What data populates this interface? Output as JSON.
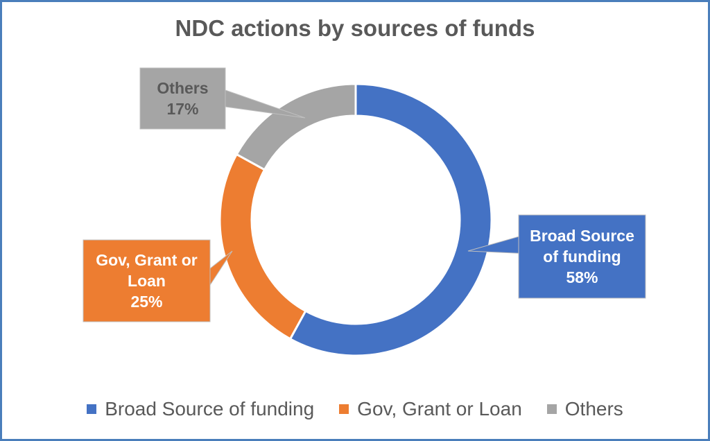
{
  "chart_data": {
    "type": "pie",
    "title": "NDC actions by sources of funds",
    "categories": [
      "Broad Source of funding",
      "Gov, Grant or Loan",
      "Others"
    ],
    "values": [
      58,
      25,
      17
    ],
    "value_labels": [
      "58%",
      "25%",
      "17%"
    ],
    "callout_lines": [
      [
        "Broad Source",
        "of funding",
        "58%"
      ],
      [
        "Gov, Grant or",
        "Loan",
        "25%"
      ],
      [
        "Others",
        "17%"
      ]
    ],
    "colors": [
      "#4472c4",
      "#ed7d31",
      "#a5a5a5"
    ],
    "label_text_colors": [
      "#ffffff",
      "#ffffff",
      "#595959"
    ],
    "legend_position": "bottom",
    "style": "doughnut"
  }
}
